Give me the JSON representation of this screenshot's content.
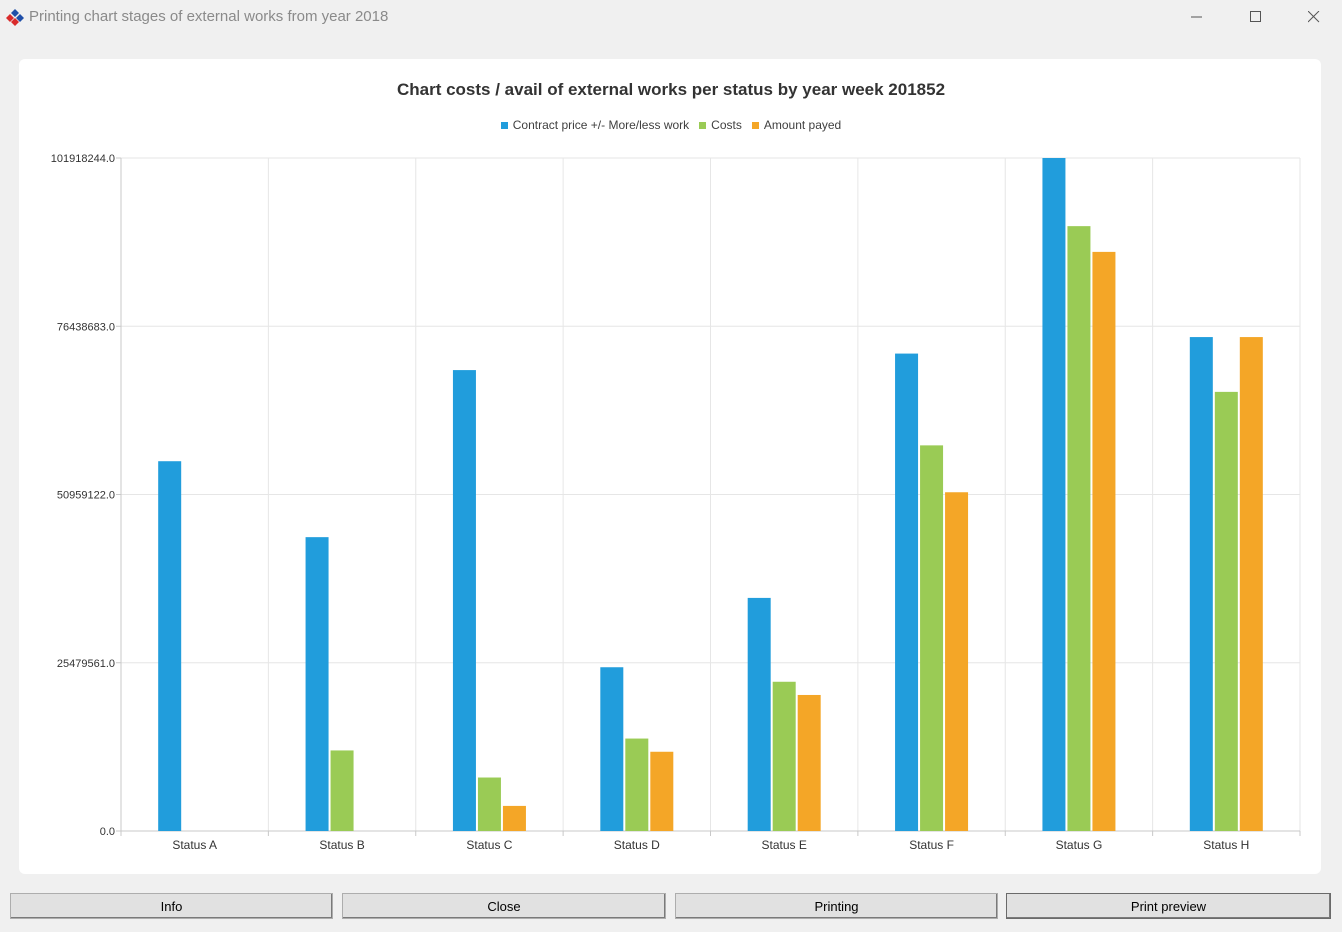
{
  "window": {
    "title": "Printing chart stages of external works from year 2018",
    "icon": "app-logo-icon"
  },
  "colors": {
    "contract": "#219ddc",
    "costs": "#9acb55",
    "payed": "#f4a627",
    "grid": "#e6e6e6",
    "axis": "#c8c8c8"
  },
  "chart_data": {
    "type": "bar",
    "title": "Chart costs / avail of external works per status by year week 201852",
    "categories": [
      "Status A",
      "Status B",
      "Status C",
      "Status D",
      "Status E",
      "Status F",
      "Status G",
      "Status H"
    ],
    "series": [
      {
        "name": "Contract price +/- More/less work",
        "color": "#219ddc",
        "values": [
          56000000,
          44500000,
          69800000,
          24800000,
          35300000,
          72300000,
          101918244,
          74800000
        ]
      },
      {
        "name": "Costs",
        "color": "#9acb55",
        "values": [
          0,
          12200000,
          8100000,
          14000000,
          22600000,
          58400000,
          91600000,
          66500000
        ]
      },
      {
        "name": "Amount payed",
        "color": "#f4a627",
        "values": [
          0,
          0,
          3800000,
          12000000,
          20600000,
          51300000,
          87700000,
          74800000
        ]
      }
    ],
    "yticks": [
      "101918244.0",
      "76438683.0",
      "50959122.0",
      "25479561.0",
      "0.0"
    ],
    "ytick_values": [
      101918244,
      76438683,
      50959122,
      25479561,
      0
    ],
    "ylim": [
      0,
      101918244
    ],
    "grid": true,
    "legend_position": "top-center"
  },
  "buttons": {
    "info": "Info",
    "close": "Close",
    "printing": "Printing",
    "print_preview": "Print preview"
  }
}
